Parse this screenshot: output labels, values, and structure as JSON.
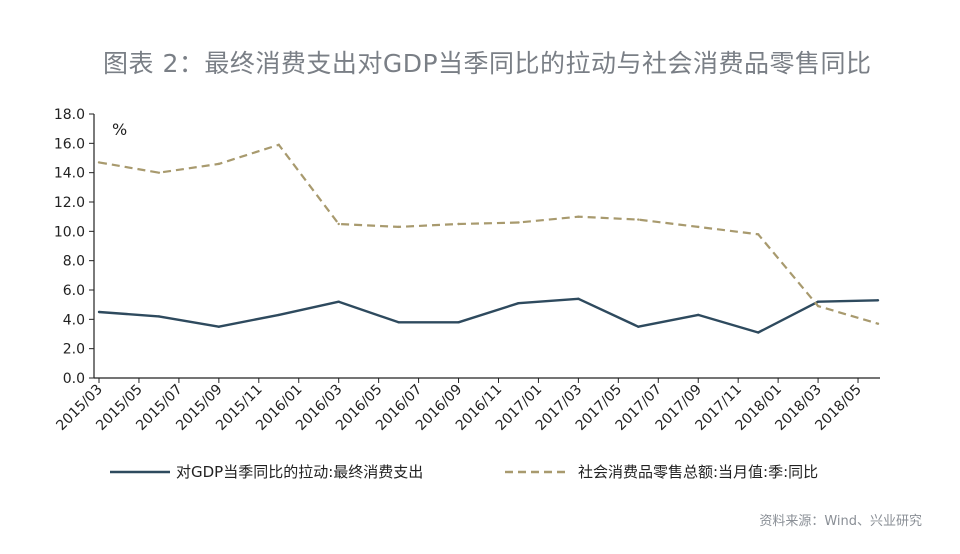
{
  "chart_data": {
    "type": "line",
    "title": "图表 2：最终消费支出对GDP当季同比的拉动与社会消费品零售同比",
    "unit_label": "%",
    "ylim": [
      0,
      18
    ],
    "y_ticks": [
      "0.0",
      "2.0",
      "4.0",
      "6.0",
      "8.0",
      "10.0",
      "12.0",
      "14.0",
      "16.0",
      "18.0"
    ],
    "x_ticks": [
      "2015/03",
      "2015/05",
      "2015/07",
      "2015/09",
      "2015/11",
      "2016/01",
      "2016/03",
      "2016/05",
      "2016/07",
      "2016/09",
      "2016/11",
      "2017/01",
      "2017/03",
      "2017/05",
      "2017/07",
      "2017/09",
      "2017/11",
      "2018/01",
      "2018/03",
      "2018/05"
    ],
    "series": [
      {
        "name": "对GDP当季同比的拉动:最终消费支出",
        "color": "#2e4a5e",
        "style": "solid",
        "points": [
          {
            "x": "2015/03",
            "y": 4.5
          },
          {
            "x": "2015/06",
            "y": 4.2
          },
          {
            "x": "2015/09",
            "y": 3.5
          },
          {
            "x": "2015/12",
            "y": 4.3
          },
          {
            "x": "2016/03",
            "y": 5.2
          },
          {
            "x": "2016/06",
            "y": 3.8
          },
          {
            "x": "2016/09",
            "y": 3.8
          },
          {
            "x": "2016/12",
            "y": 5.1
          },
          {
            "x": "2017/03",
            "y": 5.4
          },
          {
            "x": "2017/06",
            "y": 3.5
          },
          {
            "x": "2017/09",
            "y": 4.3
          },
          {
            "x": "2017/12",
            "y": 3.1
          },
          {
            "x": "2018/03",
            "y": 5.2
          },
          {
            "x": "2018/06",
            "y": 5.3
          }
        ]
      },
      {
        "name": "社会消费品零售总额:当月值:季:同比",
        "color": "#a89a6e",
        "style": "dashed",
        "points": [
          {
            "x": "2015/03",
            "y": 14.7
          },
          {
            "x": "2015/06",
            "y": 14.0
          },
          {
            "x": "2015/09",
            "y": 14.6
          },
          {
            "x": "2015/12",
            "y": 15.9
          },
          {
            "x": "2016/03",
            "y": 10.5
          },
          {
            "x": "2016/06",
            "y": 10.3
          },
          {
            "x": "2016/09",
            "y": 10.5
          },
          {
            "x": "2016/12",
            "y": 10.6
          },
          {
            "x": "2017/03",
            "y": 11.0
          },
          {
            "x": "2017/06",
            "y": 10.8
          },
          {
            "x": "2017/09",
            "y": 10.3
          },
          {
            "x": "2017/12",
            "y": 9.8
          },
          {
            "x": "2018/03",
            "y": 4.9
          },
          {
            "x": "2018/06",
            "y": 3.7
          }
        ]
      }
    ],
    "legend_position": "bottom",
    "grid": false
  },
  "source": "资料来源：Wind、兴业研究"
}
